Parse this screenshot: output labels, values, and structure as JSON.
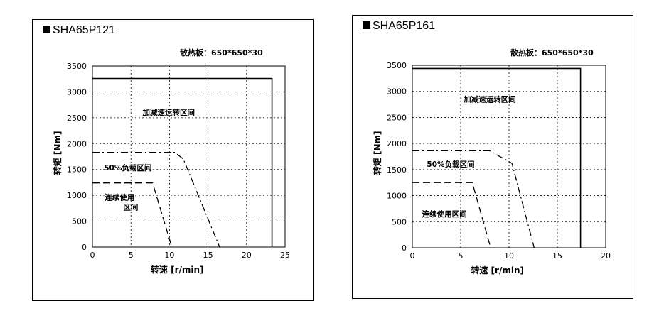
{
  "chart_data": [
    {
      "type": "line",
      "title": "SHA65P121",
      "annotation": "散热板：650*650*30",
      "xlabel": "转速 [r/min]",
      "ylabel": "转矩 [Nm]",
      "xlim": [
        0,
        25
      ],
      "ylim": [
        0,
        3500
      ],
      "x_ticks": [
        "0",
        "5",
        "10",
        "15",
        "20",
        "25"
      ],
      "y_ticks": [
        "0",
        "500",
        "1000",
        "1500",
        "2000",
        "2500",
        "3000",
        "3500"
      ],
      "grid": true,
      "series": [
        {
          "name": "加减速运转区间",
          "style": "solid",
          "x": [
            0,
            23.3,
            23.3
          ],
          "y": [
            3260,
            3260,
            0
          ]
        },
        {
          "name": "50%负载区间",
          "style": "dashdot",
          "x": [
            0,
            10.7,
            11.8,
            16.5
          ],
          "y": [
            1830,
            1830,
            1700,
            0
          ]
        },
        {
          "name": "连续使用区间",
          "style": "dashed",
          "x": [
            0,
            7.8,
            10.3
          ],
          "y": [
            1240,
            1240,
            0
          ]
        }
      ],
      "region_labels": [
        {
          "text": "加减速运转区间",
          "x": 6.5,
          "y": 2550
        },
        {
          "text": "50%负载区间",
          "x": 1.5,
          "y": 1480
        },
        {
          "text": "连续使用",
          "x": 1.6,
          "y": 910
        },
        {
          "text": "区间",
          "x": 4.0,
          "y": 720
        }
      ]
    },
    {
      "type": "line",
      "title": "SHA65P161",
      "annotation": "散热板：650*650*30",
      "xlabel": "转速 [r/min]",
      "ylabel": "转矩 [Nm]",
      "xlim": [
        0,
        20
      ],
      "ylim": [
        0,
        3500
      ],
      "x_ticks": [
        "0",
        "5",
        "10",
        "15",
        "20"
      ],
      "y_ticks": [
        "0",
        "500",
        "1000",
        "1500",
        "2000",
        "2500",
        "3000",
        "3500"
      ],
      "grid": true,
      "series": [
        {
          "name": "加减速运转区间",
          "style": "solid",
          "x": [
            0,
            17.4,
            17.4
          ],
          "y": [
            3440,
            3440,
            0
          ]
        },
        {
          "name": "50%负载区间",
          "style": "dashdot",
          "x": [
            0,
            8.0,
            10.3,
            12.6
          ],
          "y": [
            1860,
            1860,
            1620,
            0
          ]
        },
        {
          "name": "连续使用区间",
          "style": "dashed",
          "x": [
            0,
            6.2,
            8.1
          ],
          "y": [
            1250,
            1250,
            0
          ]
        }
      ],
      "region_labels": [
        {
          "text": "加减速运转区间",
          "x": 5.3,
          "y": 2800
        },
        {
          "text": "50%负载区间",
          "x": 1.5,
          "y": 1550
        },
        {
          "text": "连续使用区间",
          "x": 1.0,
          "y": 600
        }
      ]
    }
  ]
}
